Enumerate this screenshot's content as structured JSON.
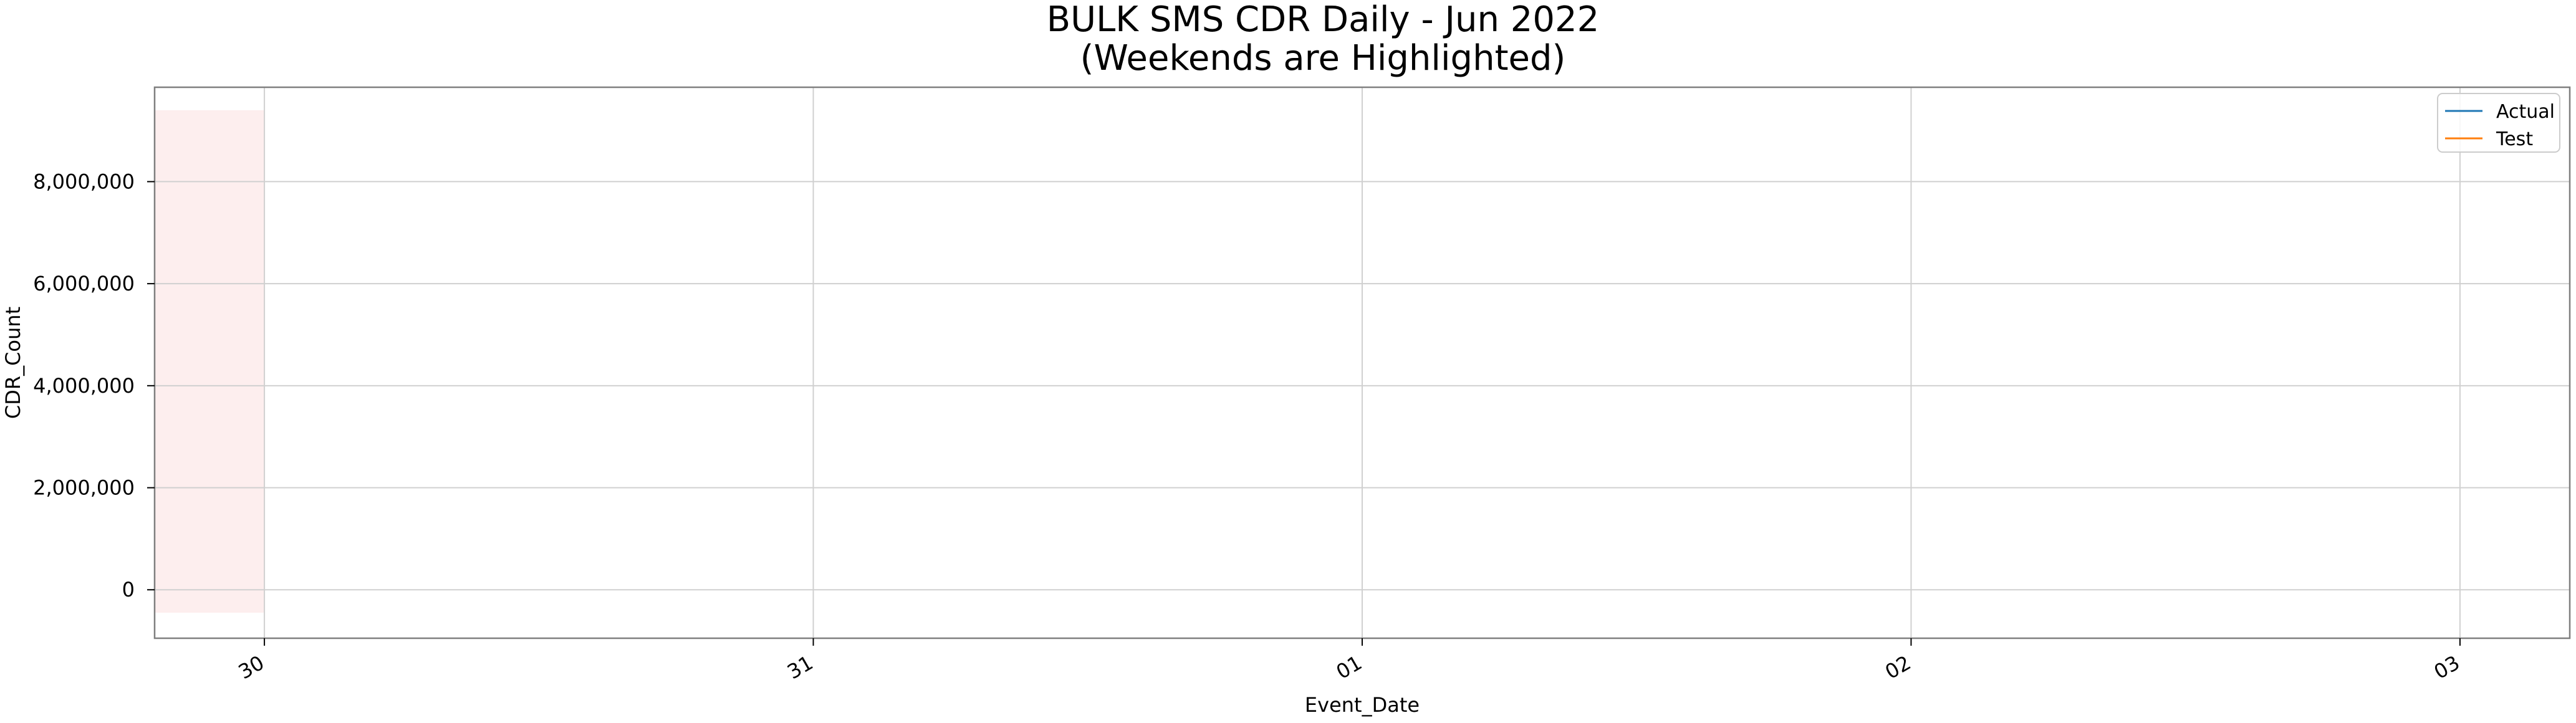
{
  "chart_data": {
    "type": "line",
    "title": "BULK SMS CDR Daily - Jun 2022",
    "subtitle": "(Weekends are Highlighted)",
    "xlabel": "Event_Date",
    "ylabel": "CDR_Count",
    "x_ticks": [
      "30",
      "31",
      "01",
      "02",
      "03"
    ],
    "y_ticks": [
      0,
      2000000,
      4000000,
      6000000,
      8000000
    ],
    "y_tick_labels": [
      "0",
      "2,000,000",
      "4,000,000",
      "6,000,000",
      "8,000,000"
    ],
    "xlim": [
      -0.2,
      4.2
    ],
    "ylim": [
      -950000,
      9850000
    ],
    "grid": true,
    "legend_position": "top-right",
    "series": [
      {
        "name": "Actual",
        "color": "#1f77b4",
        "x": [],
        "y": []
      },
      {
        "name": "Test",
        "color": "#ff7f0e",
        "x": [],
        "y": []
      }
    ],
    "weekend_highlights": [
      {
        "x_start": -0.2,
        "x_end": 0,
        "y_start": -450000,
        "y_end": 9400000,
        "color": "#fdeeee"
      }
    ],
    "colors": {
      "grid": "#d0d0d0",
      "frame": "#7f7f7f"
    }
  }
}
